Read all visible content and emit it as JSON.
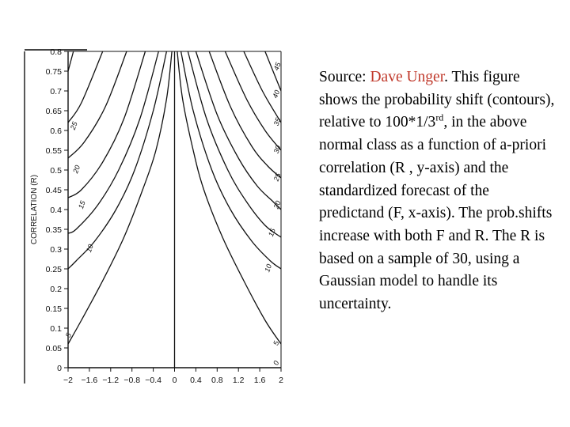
{
  "caption": {
    "prefix": "Source: ",
    "source_name": "Dave Unger",
    "text_before_sup": ". This figure shows the probability shift (contours), relative to 100*1/3",
    "sup": "rd",
    "text_after_sup": ", in the above normal class as a function of a-priori correlation (R , y-axis) and the standardized forecast of the predictand (F, x-axis). The prob.shifts increase with both F and R. The R is based on a sample of 30, using a Gaussian model to handle its uncertainty."
  },
  "colors": {
    "source_name": "#c0392b",
    "lines": "#111111"
  },
  "chart_data": {
    "type": "line",
    "ylabel": "CORRELATION (R)",
    "xlabel": "",
    "xlim": [
      -2,
      2
    ],
    "ylim": [
      0,
      0.8
    ],
    "x_tick_labels": [
      "−2",
      "−1.6",
      "−1.2",
      "−0.8",
      "−0.4",
      "0",
      "0.4",
      "0.8",
      "1.2",
      "1.6",
      "2"
    ],
    "x_tick_values": [
      -2,
      -1.6,
      -1.2,
      -0.8,
      -0.4,
      0,
      0.4,
      0.8,
      1.2,
      1.6,
      2
    ],
    "y_tick_labels": [
      "0",
      "0.05",
      "0.1",
      "0.15",
      "0.2",
      "0.25",
      "0.3",
      "0.35",
      "0.4",
      "0.45",
      "0.5",
      "0.55",
      "0.6",
      "0.65",
      "0.7",
      "0.75",
      "0.8"
    ],
    "y_tick_values": [
      0,
      0.05,
      0.1,
      0.15,
      0.2,
      0.25,
      0.3,
      0.35,
      0.4,
      0.45,
      0.5,
      0.55,
      0.6,
      0.65,
      0.7,
      0.75,
      0.8
    ],
    "contour_labels_left": [
      {
        "text": "25",
        "x": -1.85,
        "y": 0.61
      },
      {
        "text": "20",
        "x": -1.8,
        "y": 0.5
      },
      {
        "text": "15",
        "x": -1.7,
        "y": 0.41
      },
      {
        "text": "10",
        "x": -1.55,
        "y": 0.3
      },
      {
        "text": "5",
        "x": -1.95,
        "y": 0.08
      }
    ],
    "contour_labels_right": [
      {
        "text": "45",
        "x": 1.97,
        "y": 0.76
      },
      {
        "text": "40",
        "x": 1.95,
        "y": 0.69
      },
      {
        "text": "35",
        "x": 1.97,
        "y": 0.62
      },
      {
        "text": "30",
        "x": 1.97,
        "y": 0.55
      },
      {
        "text": "25",
        "x": 1.97,
        "y": 0.48
      },
      {
        "text": "20",
        "x": 1.97,
        "y": 0.41
      },
      {
        "text": "15",
        "x": 1.87,
        "y": 0.34
      },
      {
        "text": "10",
        "x": 1.8,
        "y": 0.25
      },
      {
        "text": "5",
        "x": 1.95,
        "y": 0.06
      },
      {
        "text": "0",
        "x": 1.95,
        "y": 0.01
      }
    ],
    "series": [
      {
        "x": [
          0,
          0,
          0
        ],
        "y": [
          0,
          0.4,
          0.8
        ]
      },
      {
        "x": [
          0.05,
          0.15,
          0.35,
          0.55,
          0.9,
          1.3,
          1.7,
          2.0
        ],
        "y": [
          0.8,
          0.68,
          0.55,
          0.45,
          0.33,
          0.22,
          0.12,
          0.06
        ]
      },
      {
        "x": [
          0.12,
          0.35,
          0.7,
          1.05,
          1.45,
          1.8,
          2.0
        ],
        "y": [
          0.8,
          0.65,
          0.5,
          0.4,
          0.32,
          0.27,
          0.25
        ]
      },
      {
        "x": [
          0.25,
          0.6,
          1.0,
          1.35,
          1.7,
          2.0
        ],
        "y": [
          0.8,
          0.63,
          0.5,
          0.42,
          0.36,
          0.33
        ]
      },
      {
        "x": [
          0.4,
          0.8,
          1.2,
          1.55,
          1.85,
          2.0
        ],
        "y": [
          0.8,
          0.64,
          0.53,
          0.46,
          0.42,
          0.4
        ]
      },
      {
        "x": [
          0.65,
          1.05,
          1.45,
          1.75,
          2.0
        ],
        "y": [
          0.8,
          0.66,
          0.56,
          0.51,
          0.48
        ]
      },
      {
        "x": [
          0.95,
          1.35,
          1.7,
          2.0
        ],
        "y": [
          0.8,
          0.68,
          0.6,
          0.55
        ]
      },
      {
        "x": [
          1.3,
          1.65,
          2.0
        ],
        "y": [
          0.8,
          0.7,
          0.62
        ]
      },
      {
        "x": [
          1.7,
          2.0
        ],
        "y": [
          0.8,
          0.7
        ]
      },
      {
        "x": [
          -0.05,
          -0.15,
          -0.35,
          -0.6,
          -0.95,
          -1.35,
          -1.75,
          -2.0
        ],
        "y": [
          0.8,
          0.68,
          0.55,
          0.45,
          0.33,
          0.22,
          0.12,
          0.06
        ]
      },
      {
        "x": [
          -0.15,
          -0.4,
          -0.75,
          -1.1,
          -1.5,
          -1.85,
          -2.0
        ],
        "y": [
          0.8,
          0.65,
          0.5,
          0.4,
          0.32,
          0.27,
          0.25
        ]
      },
      {
        "x": [
          -0.3,
          -0.65,
          -1.05,
          -1.45,
          -1.85,
          -2.0
        ],
        "y": [
          0.8,
          0.63,
          0.5,
          0.41,
          0.35,
          0.34
        ]
      },
      {
        "x": [
          -0.55,
          -0.95,
          -1.35,
          -1.75,
          -2.0
        ],
        "y": [
          0.8,
          0.63,
          0.52,
          0.45,
          0.43
        ]
      },
      {
        "x": [
          -0.9,
          -1.3,
          -1.7,
          -2.0
        ],
        "y": [
          0.8,
          0.66,
          0.57,
          0.53
        ]
      },
      {
        "x": [
          -1.35,
          -1.75,
          -2.0
        ],
        "y": [
          0.8,
          0.67,
          0.62
        ]
      },
      {
        "x": [
          -1.9,
          -2.0
        ],
        "y": [
          0.8,
          0.75
        ]
      }
    ]
  }
}
